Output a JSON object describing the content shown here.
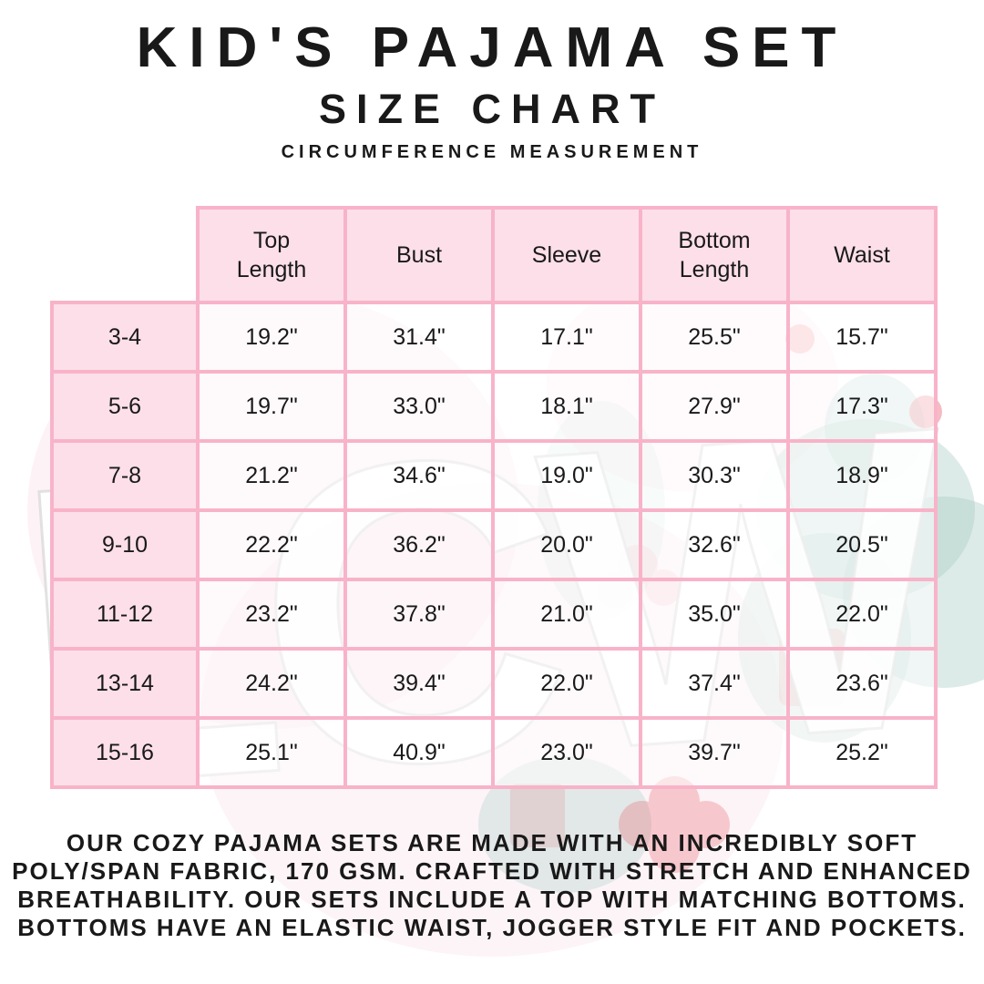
{
  "header": {
    "title": "KID'S PAJAMA SET",
    "subtitle": "SIZE CHART",
    "note": "CIRCUMFERENCE MEASUREMENT"
  },
  "size_chart": {
    "columns": [
      "Top Length",
      "Bust",
      "Sleeve",
      "Bottom Length",
      "Waist"
    ],
    "rows": [
      {
        "size": "3-4",
        "values": [
          "19.2\"",
          "31.4\"",
          "17.1\"",
          "25.5\"",
          "15.7\""
        ]
      },
      {
        "size": "5-6",
        "values": [
          "19.7\"",
          "33.0\"",
          "18.1\"",
          "27.9\"",
          "17.3\""
        ]
      },
      {
        "size": "7-8",
        "values": [
          "21.2\"",
          "34.6\"",
          "19.0\"",
          "30.3\"",
          "18.9\""
        ]
      },
      {
        "size": "9-10",
        "values": [
          "22.2\"",
          "36.2\"",
          "20.0\"",
          "32.6\"",
          "20.5\""
        ]
      },
      {
        "size": "11-12",
        "values": [
          "23.2\"",
          "37.8\"",
          "21.0\"",
          "35.0\"",
          "22.0\""
        ]
      },
      {
        "size": "13-14",
        "values": [
          "24.2\"",
          "39.4\"",
          "22.0\"",
          "37.4\"",
          "23.6\""
        ]
      },
      {
        "size": "15-16",
        "values": [
          "25.1\"",
          "40.9\"",
          "23.0\"",
          "39.7\"",
          "25.2\""
        ]
      }
    ]
  },
  "description": {
    "lines": [
      "OUR COZY PAJAMA SETS ARE MADE WITH AN INCREDIBLY SOFT",
      "POLY/SPAN FABRIC, 170 GSM. CRAFTED WITH STRETCH AND ENHANCED",
      "BREATHABILITY. OUR SETS INCLUDE A TOP WITH MATCHING BOTTOMS.",
      "BOTTOMS HAVE AN ELASTIC WAIST, JOGGER STYLE FIT AND POCKETS."
    ]
  },
  "watermark": {
    "text": "LCW"
  },
  "colors": {
    "table_border": "#f8b3c9",
    "cell_fill": "#fcdfe9",
    "text": "#191919"
  }
}
